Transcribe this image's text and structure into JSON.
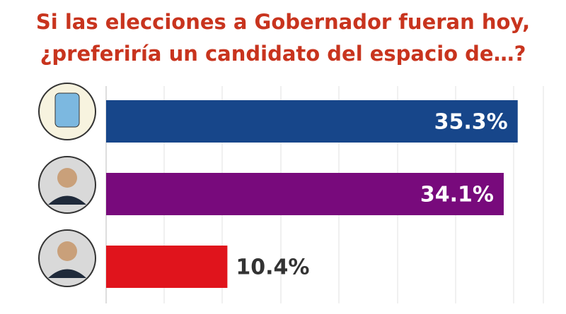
{
  "chart_data": {
    "type": "bar",
    "orientation": "horizontal",
    "title": [
      "Si las elecciones a Gobernador fueran hoy,",
      "¿preferiría un candidato del espacio de…?"
    ],
    "categories": [
      null,
      null,
      null
    ],
    "values": [
      35.3,
      34.1,
      10.4
    ],
    "value_labels": [
      "35.3%",
      "34.1%",
      "10.4%"
    ],
    "colors": [
      "#17468a",
      "#780a7c",
      "#e0141c"
    ],
    "xlim": [
      0,
      37.5
    ],
    "grid": true
  }
}
